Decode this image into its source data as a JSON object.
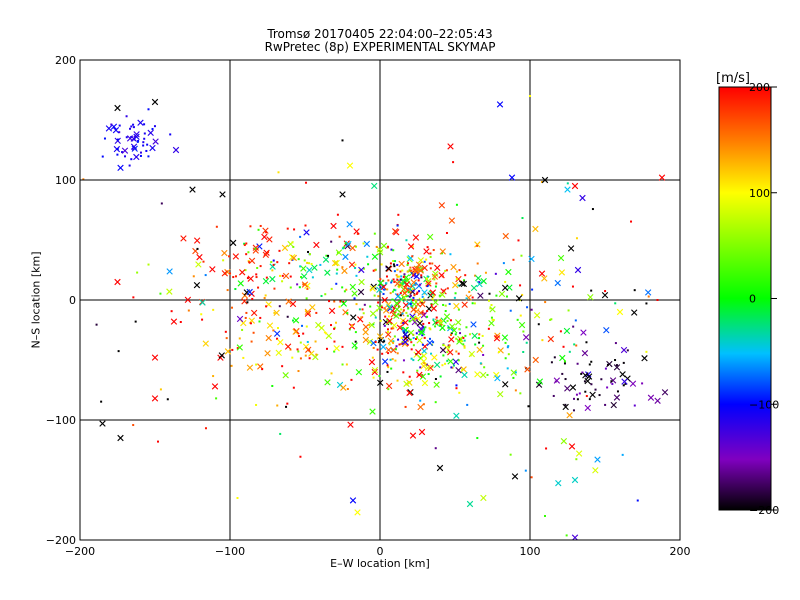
{
  "chart_data": {
    "type": "scatter",
    "title": "Tromsø 20170405 22:04:00–22:05:43",
    "subtitle": "RwPretec (8p) EXPERIMENTAL SKYMAP",
    "xlabel": "E–W location [km]",
    "ylabel": "N–S location [km]",
    "xlim": [
      -200,
      200
    ],
    "ylim": [
      -200,
      200
    ],
    "x_ticks": [
      -200,
      -100,
      0,
      100,
      200
    ],
    "y_ticks": [
      -200,
      -100,
      0,
      100,
      200
    ],
    "x_tick_labels": [
      "−200",
      "−100",
      "0",
      "100",
      "200"
    ],
    "y_tick_labels": [
      "−200",
      "−100",
      "0",
      "100",
      "200"
    ],
    "grid_lines": [
      -100,
      0,
      100
    ],
    "grid": true,
    "colorbar": {
      "title": "[m/s]",
      "range": [
        -200,
        200
      ],
      "ticks": [
        200,
        100,
        0,
        -100,
        -200
      ],
      "tick_labels": [
        "200",
        "100",
        "0",
        "−100",
        "−200"
      ],
      "colors": [
        "#000000",
        "#8000c0",
        "#0000ff",
        "#00c0ff",
        "#00ff00",
        "#ffff00",
        "#ff8000",
        "#ff0000"
      ]
    },
    "markers": [
      "dot",
      "cross"
    ],
    "clusters": [
      {
        "x": 18,
        "y": 5,
        "sx": 12,
        "sy": 22,
        "n": 220,
        "v": 60,
        "vs": 140
      },
      {
        "x": 30,
        "y": -35,
        "sx": 25,
        "sy": 22,
        "n": 200,
        "v": 50,
        "vs": 130
      },
      {
        "x": -55,
        "y": -25,
        "sx": 42,
        "sy": 30,
        "n": 170,
        "v": 160,
        "vs": 70
      },
      {
        "x": -35,
        "y": 30,
        "sx": 35,
        "sy": 14,
        "n": 90,
        "v": 20,
        "vs": 90
      },
      {
        "x": 70,
        "y": -20,
        "sx": 30,
        "sy": 25,
        "n": 90,
        "v": 20,
        "vs": 60
      },
      {
        "x": 140,
        "y": -65,
        "sx": 20,
        "sy": 15,
        "n": 70,
        "v": -190,
        "vs": 40
      },
      {
        "x": -165,
        "y": 132,
        "sx": 10,
        "sy": 10,
        "n": 55,
        "v": -110,
        "vs": 10
      },
      {
        "x": -85,
        "y": 40,
        "sx": 15,
        "sy": 12,
        "n": 40,
        "v": 190,
        "vs": 10
      },
      {
        "x": 30,
        "y": 25,
        "sx": 20,
        "sy": 20,
        "n": 60,
        "v": 170,
        "vs": 30
      },
      {
        "x": 100,
        "y": 20,
        "sx": 40,
        "sy": 40,
        "n": 60,
        "v": 0,
        "vs": 200
      },
      {
        "x": -60,
        "y": -10,
        "sx": 70,
        "sy": 60,
        "n": 80,
        "v": 0,
        "vs": 200
      },
      {
        "x": 130,
        "y": -120,
        "sx": 25,
        "sy": 40,
        "n": 20,
        "v": -20,
        "vs": 150
      }
    ],
    "points": [
      {
        "x": -175,
        "y": 160,
        "v": -200,
        "m": "cross"
      },
      {
        "x": -150,
        "y": 165,
        "v": -200,
        "m": "cross"
      },
      {
        "x": -136,
        "y": 125,
        "v": -120,
        "m": "cross"
      },
      {
        "x": -185,
        "y": -103,
        "v": -200,
        "m": "cross"
      },
      {
        "x": -173,
        "y": -115,
        "v": -200,
        "m": "cross"
      },
      {
        "x": -175,
        "y": 15,
        "v": 200,
        "m": "cross"
      },
      {
        "x": -150,
        "y": -48,
        "v": 200,
        "m": "cross"
      },
      {
        "x": -150,
        "y": -82,
        "v": 200,
        "m": "cross"
      },
      {
        "x": -148,
        "y": -118,
        "v": 200,
        "m": "dot"
      },
      {
        "x": -125,
        "y": 92,
        "v": -200,
        "m": "cross"
      },
      {
        "x": -105,
        "y": 88,
        "v": -200,
        "m": "cross"
      },
      {
        "x": -110,
        "y": -72,
        "v": 200,
        "m": "cross"
      },
      {
        "x": -95,
        "y": -165,
        "v": 100,
        "m": "dot"
      },
      {
        "x": -25,
        "y": 88,
        "v": -200,
        "m": "cross"
      },
      {
        "x": -25,
        "y": 133,
        "v": -200,
        "m": "dot"
      },
      {
        "x": -20,
        "y": 112,
        "v": 100,
        "m": "cross"
      },
      {
        "x": -18,
        "y": -167,
        "v": -100,
        "m": "cross"
      },
      {
        "x": -15,
        "y": -177,
        "v": 100,
        "m": "cross"
      },
      {
        "x": 80,
        "y": 163,
        "v": -100,
        "m": "cross"
      },
      {
        "x": 47,
        "y": 128,
        "v": 200,
        "m": "cross"
      },
      {
        "x": 88,
        "y": 102,
        "v": -100,
        "m": "cross"
      },
      {
        "x": 100,
        "y": 170,
        "v": 100,
        "m": "dot"
      },
      {
        "x": 110,
        "y": 100,
        "v": -200,
        "m": "cross"
      },
      {
        "x": 125,
        "y": 92,
        "v": -50,
        "m": "cross"
      },
      {
        "x": 130,
        "y": 95,
        "v": 200,
        "m": "cross"
      },
      {
        "x": 135,
        "y": 85,
        "v": -120,
        "m": "cross"
      },
      {
        "x": 188,
        "y": 102,
        "v": 200,
        "m": "cross"
      },
      {
        "x": 185,
        "y": 0,
        "v": 200,
        "m": "dot"
      },
      {
        "x": 150,
        "y": 4,
        "v": -200,
        "m": "cross"
      },
      {
        "x": 132,
        "y": 25,
        "v": -120,
        "m": "cross"
      },
      {
        "x": 108,
        "y": 22,
        "v": 200,
        "m": "cross"
      },
      {
        "x": 40,
        "y": -140,
        "v": -200,
        "m": "cross"
      },
      {
        "x": 60,
        "y": -170,
        "v": -30,
        "m": "cross"
      },
      {
        "x": 90,
        "y": -147,
        "v": -200,
        "m": "cross"
      },
      {
        "x": 130,
        "y": -150,
        "v": -40,
        "m": "cross"
      },
      {
        "x": 130,
        "y": -198,
        "v": -130,
        "m": "cross"
      },
      {
        "x": 128,
        "y": -122,
        "v": 200,
        "m": "cross"
      },
      {
        "x": 145,
        "y": -133,
        "v": -60,
        "m": "cross"
      },
      {
        "x": 110,
        "y": -180,
        "v": 20,
        "m": "dot"
      },
      {
        "x": 163,
        "y": -68,
        "v": -120,
        "m": "cross"
      },
      {
        "x": 160,
        "y": -10,
        "v": 100,
        "m": "cross"
      },
      {
        "x": 28,
        "y": -110,
        "v": 200,
        "m": "cross"
      },
      {
        "x": 22,
        "y": -113,
        "v": 200,
        "m": "cross"
      },
      {
        "x": -5,
        "y": -93,
        "v": 20,
        "m": "cross"
      }
    ]
  }
}
